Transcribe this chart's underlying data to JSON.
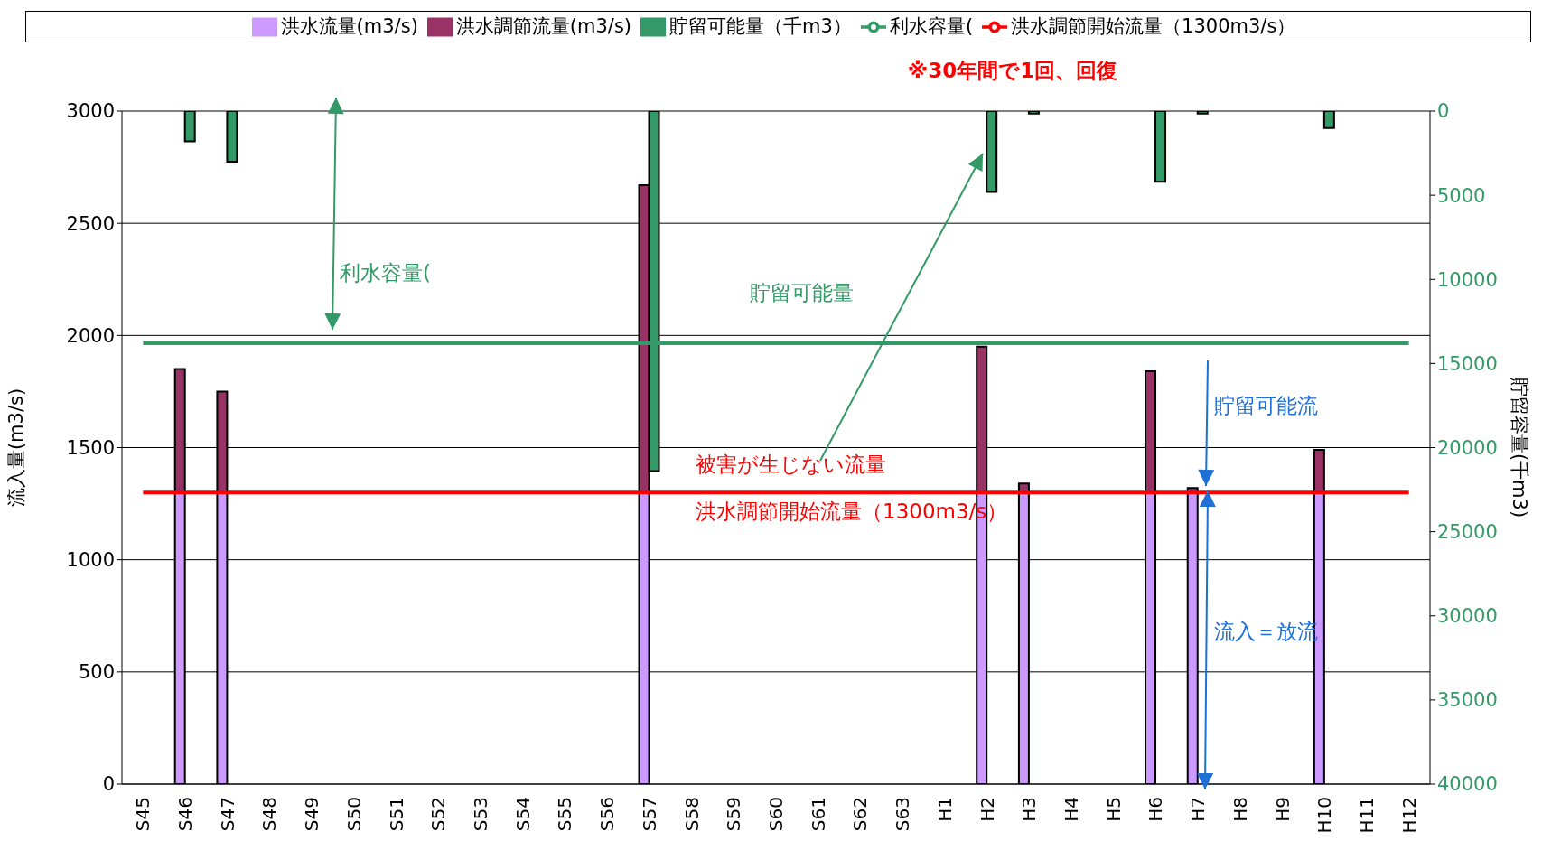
{
  "chart_data": {
    "type": "bar",
    "categories": [
      "S45",
      "S46",
      "S47",
      "S48",
      "S49",
      "S50",
      "S51",
      "S52",
      "S53",
      "S54",
      "S55",
      "S56",
      "S57",
      "S58",
      "S59",
      "S60",
      "S61",
      "S62",
      "S63",
      "H1",
      "H2",
      "H3",
      "H4",
      "H5",
      "H6",
      "H7",
      "H8",
      "H9",
      "H10",
      "H11",
      "H12"
    ],
    "series": [
      {
        "name": "洪水流量(m3/s)",
        "color": "#cc99ff",
        "values": [
          null,
          1300,
          1300,
          null,
          null,
          null,
          null,
          null,
          null,
          null,
          null,
          null,
          1300,
          null,
          null,
          null,
          null,
          null,
          null,
          null,
          1300,
          1300,
          null,
          null,
          1300,
          1300,
          null,
          null,
          1300,
          null,
          null
        ]
      },
      {
        "name": "洪水調節流量(m3/s)",
        "color": "#993366",
        "values": [
          null,
          550,
          450,
          null,
          null,
          null,
          null,
          null,
          null,
          null,
          null,
          null,
          1370,
          null,
          null,
          null,
          null,
          null,
          null,
          null,
          650,
          40,
          null,
          null,
          540,
          20,
          null,
          null,
          190,
          null,
          null
        ]
      },
      {
        "name": "貯留可能量（千m3）",
        "axis": "y2",
        "color": "#339966",
        "values": [
          null,
          1800,
          3000,
          null,
          null,
          null,
          null,
          null,
          null,
          null,
          null,
          null,
          21400,
          null,
          null,
          null,
          null,
          null,
          null,
          null,
          4800,
          150,
          null,
          null,
          4200,
          150,
          null,
          null,
          1000,
          null,
          null
        ]
      },
      {
        "name": "利水容量(",
        "type": "line",
        "axis": "y2",
        "color": "#339966",
        "values": [
          13800,
          13800,
          13800,
          13800,
          13800,
          13800,
          13800,
          13800,
          13800,
          13800,
          13800,
          13800,
          13800,
          13800,
          13800,
          13800,
          13800,
          13800,
          13800,
          13800,
          13800,
          13800,
          13800,
          13800,
          13800,
          13800,
          13800,
          13800,
          13800,
          13800,
          13800
        ]
      },
      {
        "name": "洪水調節開始流量（1300m3/s）",
        "type": "line",
        "color": "#ff0000",
        "values": [
          1300,
          1300,
          1300,
          1300,
          1300,
          1300,
          1300,
          1300,
          1300,
          1300,
          1300,
          1300,
          1300,
          1300,
          1300,
          1300,
          1300,
          1300,
          1300,
          1300,
          1300,
          1300,
          1300,
          1300,
          1300,
          1300,
          1300,
          1300,
          1300,
          1300,
          1300
        ]
      }
    ],
    "stacked": true,
    "ylabel": "流入量(m3/s)",
    "y2label": "貯留容量(千m3)",
    "ylim": [
      0,
      3000
    ],
    "yticks": [
      0,
      500,
      1000,
      1500,
      2000,
      2500,
      3000
    ],
    "y2lim": [
      40000,
      0
    ],
    "y2ticks": [
      0,
      5000,
      10000,
      15000,
      20000,
      25000,
      30000,
      35000,
      40000
    ],
    "grid": "y",
    "legend": "top",
    "marker": "none",
    "line_style": "solid",
    "annotations": [
      "※30年間で1回、回復",
      "利水容量(",
      "貯留可能量",
      "被害が生じない流量",
      "洪水調節開始流量（1300m3/s）",
      "貯留可能流",
      "流入＝放流"
    ]
  }
}
